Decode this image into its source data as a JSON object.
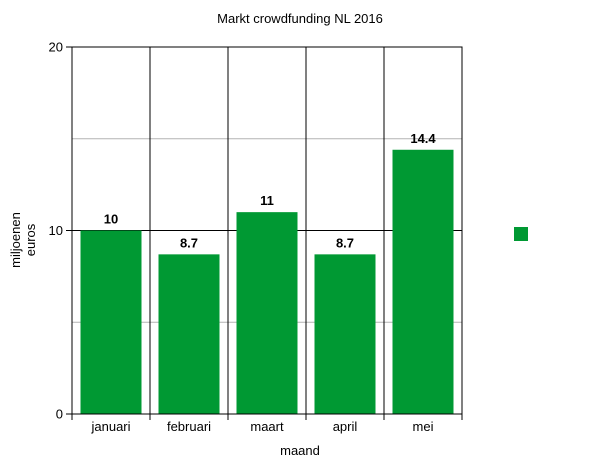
{
  "chart_data": {
    "type": "bar",
    "title": "Markt crowdfunding NL 2016",
    "xlabel": "maand",
    "ylabel": [
      "miljoenen",
      "euros"
    ],
    "categories": [
      "januari",
      "februari",
      "maart",
      "april",
      "mei"
    ],
    "series": [
      {
        "values": [
          10,
          8.7,
          11,
          8.7,
          14.4
        ],
        "color": "#009933"
      }
    ],
    "data_labels": [
      "10",
      "8.7",
      "11",
      "8.7",
      "14.4"
    ],
    "ylim": [
      0,
      20
    ],
    "y_ticks": [
      0,
      10,
      20
    ],
    "y_minor_gridlines": [
      5,
      15
    ],
    "grid": true,
    "legend": {
      "placement": "right",
      "entries": [
        ""
      ]
    }
  }
}
